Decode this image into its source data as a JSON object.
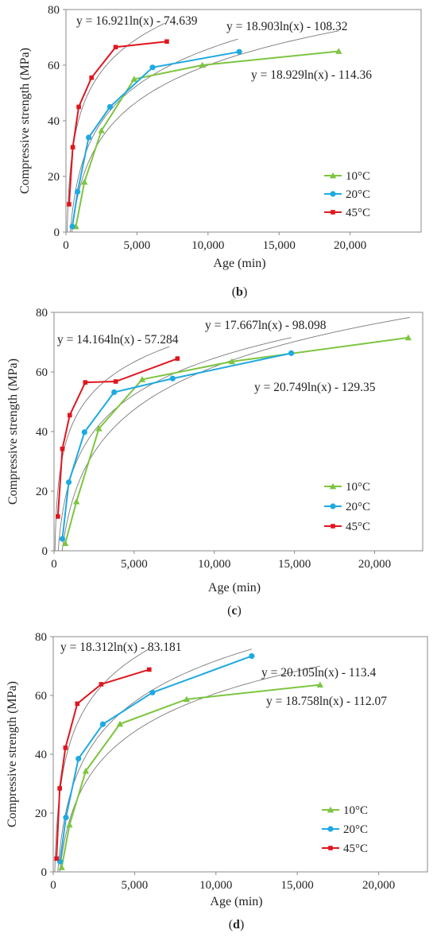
{
  "chart_data": [
    {
      "type": "line",
      "panel_label": "(b)",
      "xlabel": "Age (min)",
      "ylabel": "Compressive strength (MPa)",
      "xlim": [
        0,
        25000
      ],
      "ylim": [
        0,
        80
      ],
      "xticks": [
        "0",
        "5,000",
        "10,000",
        "15,000",
        "20,000"
      ],
      "yticks": [
        "0",
        "20",
        "40",
        "60",
        "80"
      ],
      "legend_position": "bottom-right",
      "series": [
        {
          "name": "10°C",
          "color": "#7dc540",
          "marker": "triangle",
          "x": [
            700,
            1300,
            2500,
            4800,
            9600,
            19200
          ],
          "y": [
            2,
            18,
            36.5,
            55,
            60,
            65
          ],
          "fit": {
            "a": 18.929,
            "b": -114.36,
            "equation": "y = 18.929ln(x) - 114.36"
          }
        },
        {
          "name": "20°C",
          "color": "#1fa9e1",
          "marker": "circle",
          "x": [
            450,
            820,
            1600,
            3100,
            6100,
            12200
          ],
          "y": [
            2,
            14.5,
            34,
            45,
            59.2,
            64.8
          ],
          "fit": {
            "a": 18.903,
            "b": -108.32,
            "equation": "y = 18.903ln(x) - 108.32"
          }
        },
        {
          "name": "45°C",
          "color": "#e0161e",
          "marker": "square",
          "x": [
            220,
            480,
            900,
            1800,
            3500,
            7100
          ],
          "y": [
            10,
            30.5,
            45,
            55.5,
            66.5,
            68.5
          ],
          "fit": {
            "a": 16.921,
            "b": -74.639,
            "equation": "y = 16.921ln(x) - 74.639"
          }
        }
      ]
    },
    {
      "type": "line",
      "panel_label": "(c)",
      "xlabel": "Age (min)",
      "ylabel": "Compressive strength (MPa)",
      "xlim": [
        0,
        23000
      ],
      "ylim": [
        0,
        80
      ],
      "xticks": [
        "0",
        "5,000",
        "10,000",
        "15,000",
        "20,000"
      ],
      "yticks": [
        "0",
        "20",
        "40",
        "60",
        "80"
      ],
      "legend_position": "bottom-right",
      "series": [
        {
          "name": "10°C",
          "color": "#7dc540",
          "marker": "triangle",
          "x": [
            700,
            1400,
            2800,
            5500,
            11100,
            22100
          ],
          "y": [
            2.5,
            16.5,
            41,
            57.5,
            63.5,
            71.5
          ],
          "fit": {
            "a": 20.749,
            "b": -129.35,
            "equation": "y = 20.749ln(x) - 129.35"
          }
        },
        {
          "name": "20°C",
          "color": "#1fa9e1",
          "marker": "circle",
          "x": [
            520,
            920,
            1900,
            3750,
            7400,
            14800
          ],
          "y": [
            4,
            23,
            39.8,
            53.2,
            57.8,
            66.3
          ],
          "fit": {
            "a": 17.667,
            "b": -98.098,
            "equation": "y = 17.667ln(x) - 98.098"
          }
        },
        {
          "name": "45°C",
          "color": "#e0161e",
          "marker": "square",
          "x": [
            240,
            520,
            980,
            1950,
            3850,
            7700
          ],
          "y": [
            11.5,
            34.2,
            45.5,
            56.5,
            56.8,
            64.5
          ],
          "fit": {
            "a": 14.164,
            "b": -57.284,
            "equation": "y = 14.164ln(x) - 57.284"
          }
        }
      ]
    },
    {
      "type": "line",
      "panel_label": "(d)",
      "xlabel": "Age (min)",
      "ylabel": "Compressive strength (MPa)",
      "xlim": [
        0,
        23000
      ],
      "ylim": [
        0,
        80
      ],
      "xticks": [
        "0",
        "5,000",
        "10,000",
        "15,000",
        "20,000"
      ],
      "yticks": [
        "0",
        "20",
        "40",
        "60",
        "80"
      ],
      "legend_position": "bottom-right",
      "series": [
        {
          "name": "10°C",
          "color": "#7dc540",
          "marker": "triangle",
          "x": [
            520,
            1000,
            2000,
            4100,
            8200,
            16400
          ],
          "y": [
            1.5,
            16,
            34.3,
            50.3,
            58.7,
            63.6
          ],
          "fit": {
            "a": 18.758,
            "b": -112.07,
            "equation": "y = 18.758ln(x) - 112.07"
          }
        },
        {
          "name": "20°C",
          "color": "#1fa9e1",
          "marker": "circle",
          "x": [
            420,
            780,
            1550,
            3050,
            6100,
            12200
          ],
          "y": [
            3.5,
            18.5,
            38.5,
            50.2,
            61,
            73.4
          ],
          "fit": {
            "a": 20.105,
            "b": -113.4,
            "equation": "y = 20.105ln(x) - 113.4"
          }
        },
        {
          "name": "45°C",
          "color": "#e0161e",
          "marker": "square",
          "x": [
            200,
            400,
            750,
            1480,
            2950,
            5900
          ],
          "y": [
            4.5,
            28.4,
            42.2,
            57.2,
            63.8,
            68.8
          ],
          "fit": {
            "a": 18.312,
            "b": -83.181,
            "equation": "y = 18.312ln(x) - 83.181"
          }
        }
      ]
    }
  ]
}
